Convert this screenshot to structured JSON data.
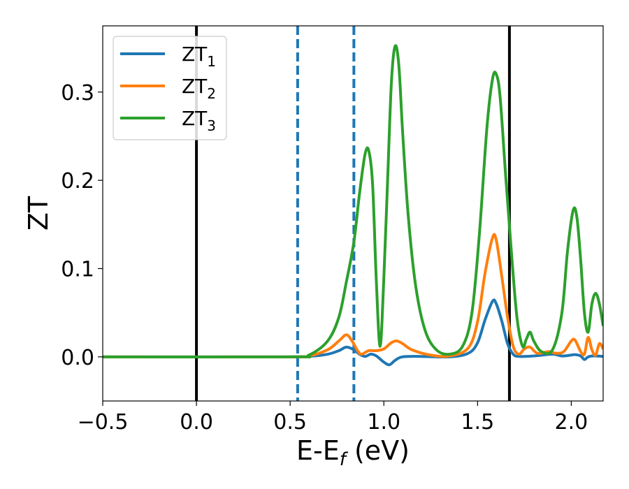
{
  "chart_data": {
    "type": "line",
    "xlabel": "E-E",
    "xlabel_sub": "f",
    "xlabel_unit": " (eV)",
    "ylabel": "ZT",
    "xlim": [
      -0.5,
      2.17
    ],
    "ylim": [
      -0.05,
      0.375
    ],
    "xticks": [
      -0.5,
      0.0,
      0.5,
      1.0,
      1.5,
      2.0
    ],
    "xtick_labels": [
      "−0.5",
      "0.0",
      "0.5",
      "1.0",
      "1.5",
      "2.0"
    ],
    "yticks": [
      0.0,
      0.1,
      0.2,
      0.3
    ],
    "ytick_labels": [
      "0.0",
      "0.1",
      "0.2",
      "0.3"
    ],
    "grid": false,
    "legend_position": "top-left",
    "vertical_lines": [
      {
        "x": 0.0,
        "style": "solid",
        "color": "#000000"
      },
      {
        "x": 0.54,
        "style": "dashed",
        "color": "#1f77b4"
      },
      {
        "x": 0.84,
        "style": "dashed",
        "color": "#1f77b4"
      },
      {
        "x": 1.67,
        "style": "solid",
        "color": "#000000"
      }
    ],
    "series": [
      {
        "name": "ZT",
        "name_sub": "1",
        "color": "#1f77b4",
        "points": [
          [
            -0.5,
            0
          ],
          [
            0.5,
            0
          ],
          [
            0.6,
            0.0005
          ],
          [
            0.7,
            0.003
          ],
          [
            0.76,
            0.007
          ],
          [
            0.8,
            0.011
          ],
          [
            0.84,
            0.008
          ],
          [
            0.87,
            0.003
          ],
          [
            0.9,
            0.0005
          ],
          [
            0.93,
            0.003
          ],
          [
            0.96,
            0.001
          ],
          [
            1.0,
            -0.006
          ],
          [
            1.03,
            -0.009
          ],
          [
            1.06,
            -0.004
          ],
          [
            1.1,
            0
          ],
          [
            1.2,
            0.0005
          ],
          [
            1.35,
            0
          ],
          [
            1.45,
            0.004
          ],
          [
            1.5,
            0.016
          ],
          [
            1.54,
            0.042
          ],
          [
            1.58,
            0.063
          ],
          [
            1.6,
            0.06
          ],
          [
            1.63,
            0.04
          ],
          [
            1.66,
            0.015
          ],
          [
            1.69,
            0.003
          ],
          [
            1.72,
            0.0005
          ],
          [
            1.8,
            0.001
          ],
          [
            1.9,
            0.003
          ],
          [
            1.95,
            0.001
          ],
          [
            2.0,
            0.002
          ],
          [
            2.02,
            0.0025
          ],
          [
            2.05,
            0.001
          ],
          [
            2.07,
            -0.003
          ],
          [
            2.09,
            0
          ],
          [
            2.12,
            0.001
          ],
          [
            2.17,
            0.0005
          ]
        ]
      },
      {
        "name": "ZT",
        "name_sub": "2",
        "color": "#ff7f0e",
        "points": [
          [
            -0.5,
            0
          ],
          [
            0.5,
            0
          ],
          [
            0.6,
            0.001
          ],
          [
            0.7,
            0.008
          ],
          [
            0.76,
            0.018
          ],
          [
            0.8,
            0.025
          ],
          [
            0.83,
            0.018
          ],
          [
            0.86,
            0.007
          ],
          [
            0.88,
            0.003
          ],
          [
            0.92,
            0.007
          ],
          [
            0.96,
            0.007
          ],
          [
            1.0,
            0.009
          ],
          [
            1.04,
            0.016
          ],
          [
            1.07,
            0.018
          ],
          [
            1.1,
            0.015
          ],
          [
            1.15,
            0.008
          ],
          [
            1.25,
            0.002
          ],
          [
            1.35,
            0.001
          ],
          [
            1.45,
            0.01
          ],
          [
            1.5,
            0.04
          ],
          [
            1.54,
            0.095
          ],
          [
            1.58,
            0.135
          ],
          [
            1.6,
            0.132
          ],
          [
            1.63,
            0.09
          ],
          [
            1.66,
            0.045
          ],
          [
            1.69,
            0.012
          ],
          [
            1.72,
            0.003
          ],
          [
            1.75,
            0.009
          ],
          [
            1.78,
            0.011
          ],
          [
            1.82,
            0.004
          ],
          [
            1.88,
            0.006
          ],
          [
            1.92,
            0.004
          ],
          [
            1.96,
            0.006
          ],
          [
            2.0,
            0.018
          ],
          [
            2.02,
            0.019
          ],
          [
            2.05,
            0.006
          ],
          [
            2.07,
            0.003
          ],
          [
            2.09,
            0.022
          ],
          [
            2.11,
            0.008
          ],
          [
            2.13,
            0.002
          ],
          [
            2.15,
            0.015
          ],
          [
            2.17,
            0.009
          ]
        ]
      },
      {
        "name": "ZT",
        "name_sub": "3",
        "color": "#2ca02c",
        "points": [
          [
            -0.5,
            0
          ],
          [
            0.5,
            0
          ],
          [
            0.6,
            0.002
          ],
          [
            0.7,
            0.018
          ],
          [
            0.76,
            0.045
          ],
          [
            0.8,
            0.085
          ],
          [
            0.84,
            0.13
          ],
          [
            0.87,
            0.185
          ],
          [
            0.9,
            0.23
          ],
          [
            0.92,
            0.233
          ],
          [
            0.94,
            0.195
          ],
          [
            0.96,
            0.085
          ],
          [
            0.98,
            0.012
          ],
          [
            1.0,
            0.09
          ],
          [
            1.02,
            0.2
          ],
          [
            1.04,
            0.31
          ],
          [
            1.06,
            0.352
          ],
          [
            1.08,
            0.33
          ],
          [
            1.1,
            0.255
          ],
          [
            1.13,
            0.16
          ],
          [
            1.17,
            0.08
          ],
          [
            1.22,
            0.03
          ],
          [
            1.28,
            0.008
          ],
          [
            1.35,
            0.003
          ],
          [
            1.42,
            0.012
          ],
          [
            1.47,
            0.05
          ],
          [
            1.51,
            0.14
          ],
          [
            1.55,
            0.26
          ],
          [
            1.58,
            0.315
          ],
          [
            1.6,
            0.32
          ],
          [
            1.62,
            0.295
          ],
          [
            1.65,
            0.205
          ],
          [
            1.68,
            0.12
          ],
          [
            1.71,
            0.045
          ],
          [
            1.74,
            0.012
          ],
          [
            1.76,
            0.02
          ],
          [
            1.78,
            0.028
          ],
          [
            1.8,
            0.018
          ],
          [
            1.84,
            0.006
          ],
          [
            1.9,
            0.008
          ],
          [
            1.95,
            0.05
          ],
          [
            1.98,
            0.12
          ],
          [
            2.01,
            0.166
          ],
          [
            2.03,
            0.158
          ],
          [
            2.05,
            0.11
          ],
          [
            2.07,
            0.05
          ],
          [
            2.09,
            0.028
          ],
          [
            2.11,
            0.06
          ],
          [
            2.13,
            0.072
          ],
          [
            2.15,
            0.06
          ],
          [
            2.17,
            0.035
          ]
        ]
      }
    ]
  }
}
